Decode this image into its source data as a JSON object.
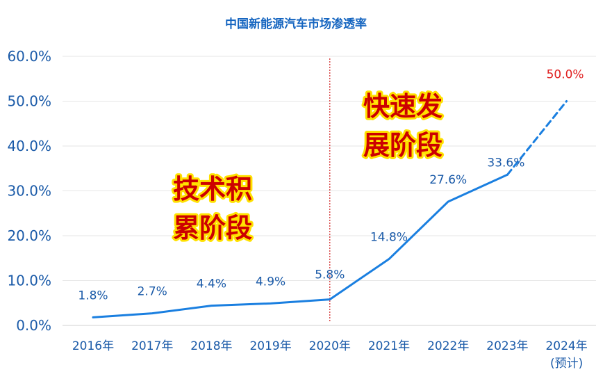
{
  "chart_data": {
    "type": "line",
    "title": "中国新能源汽车市场渗透率",
    "categories": [
      "2016年",
      "2017年",
      "2018年",
      "2019年",
      "2020年",
      "2021年",
      "2022年",
      "2023年",
      "2024年"
    ],
    "category_sublabels": [
      "",
      "",
      "",
      "",
      "",
      "",
      "",
      "",
      "(预计)"
    ],
    "series": [
      {
        "values": [
          1.8,
          2.7,
          4.4,
          4.9,
          5.8,
          14.8,
          27.6,
          33.6,
          50.0
        ],
        "labels": [
          "1.8%",
          "2.7%",
          "4.4%",
          "4.9%",
          "5.8%",
          "14.8%",
          "27.6%",
          "33.6%",
          "50.0%"
        ],
        "color": "#1a7fe0",
        "projected_from_index": 7,
        "projected_label_color": "#e02020"
      }
    ],
    "yticks": [
      "0.0%",
      "10.0%",
      "20.0%",
      "30.0%",
      "40.0%",
      "50.0%",
      "60.0%"
    ],
    "ylim": [
      0,
      60
    ],
    "grid": true,
    "divider_after_category": "2020年",
    "divider_color": "#d02020",
    "annotations": [
      {
        "lines": [
          "技术积",
          "累阶段"
        ],
        "color": "#cc0000",
        "outline": "#ffe100"
      },
      {
        "lines": [
          "快速发",
          "展阶段"
        ],
        "color": "#cc0000",
        "outline": "#ffe100"
      }
    ]
  }
}
